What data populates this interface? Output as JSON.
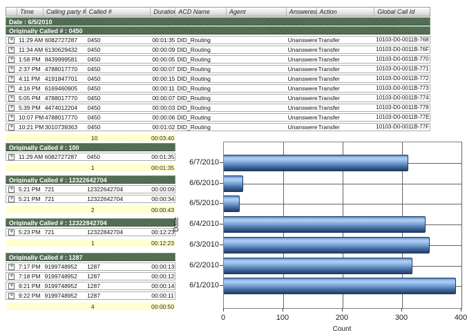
{
  "report": {
    "columns": [
      "Time",
      "Calling party #",
      "Called #",
      "Duration",
      "ACD Name",
      "Agent",
      "Answered",
      "Action",
      "Global Call Id"
    ],
    "date_banner": "Date : 6/5/2010",
    "icons": {
      "expand": "+"
    },
    "groups": [
      {
        "banner": "Originally Called # : 0450",
        "rows": [
          [
            "11:29 AM",
            "6082727287",
            "0450",
            "00:01:35",
            "DID_Routing",
            "",
            "Unanswered",
            "Transfer",
            "10103-D0-0011B-768"
          ],
          [
            "11:34 AM",
            "6130629432",
            "0450",
            "00:00:09",
            "DID_Routing",
            "",
            "Unanswered",
            "Transfer",
            "10103-D0-0011B-76F"
          ],
          [
            "1:58 PM",
            "8439999581",
            "0450",
            "00:00:05",
            "DID_Routing",
            "",
            "Unanswered",
            "Transfer",
            "10103-D0-0011B-770"
          ],
          [
            "2:37 PM",
            "4788017770",
            "0450",
            "00:00:07",
            "DID_Routing",
            "",
            "Unanswered",
            "Transfer",
            "10103-D0-0011B-771"
          ],
          [
            "4:11 PM",
            "4191847701",
            "0450",
            "00:00:15",
            "DID_Routing",
            "",
            "Unanswered",
            "Transfer",
            "10103-D0-0011B-772"
          ],
          [
            "4:16 PM",
            "6169460905",
            "0450",
            "00:00:11",
            "DID_Routing",
            "",
            "Unanswered",
            "Transfer",
            "10103-D0-0011B-773"
          ],
          [
            "5:05 PM",
            "4788017770",
            "0450",
            "00:00:07",
            "DID_Routing",
            "",
            "Unanswered",
            "Transfer",
            "10103-D0-0011B-774"
          ],
          [
            "5:39 PM",
            "4474012204",
            "0450",
            "00:00:03",
            "DID_Routing",
            "",
            "Unanswered",
            "Transfer",
            "10103-D0-0011B-778"
          ],
          [
            "10:07 PM",
            "4788017770",
            "0450",
            "00:00:06",
            "DID_Routing",
            "",
            "Unanswered",
            "Transfer",
            "10103-D0-0011B-77E"
          ],
          [
            "10:21 PM",
            "3010739363",
            "0450",
            "00:01:02",
            "DID_Routing",
            "",
            "Unanswered",
            "Transfer",
            "10103-D0-0011B-77F"
          ]
        ],
        "summary_count": "10",
        "summary_duration": "00:03:40"
      },
      {
        "banner": "Originally Called # : 100",
        "rows": [
          [
            "11:29 AM",
            "6082727287",
            "0450",
            "00:01:35"
          ]
        ],
        "summary_count": "1",
        "summary_duration": "00:01:35"
      },
      {
        "banner": "Originally Called # : 12322642704",
        "rows": [
          [
            "5:21 PM",
            "721",
            "12322642704",
            "00:00:09"
          ],
          [
            "5:21 PM",
            "721",
            "12322642704",
            "00:00:34"
          ]
        ],
        "summary_count": "2",
        "summary_duration": "00:00:43"
      },
      {
        "banner": "Originally Called # : 12322842704",
        "rows": [
          [
            "5:23 PM",
            "721",
            "12322842704",
            "00:12:23"
          ]
        ],
        "summary_count": "1",
        "summary_duration": "00:12:23"
      },
      {
        "banner": "Originally Called # : 1287",
        "rows": [
          [
            "7:17 PM",
            "9199748952",
            "1287",
            "00:00:13"
          ],
          [
            "7:18 PM",
            "9199748952",
            "1287",
            "00:00:12"
          ],
          [
            "9:21 PM",
            "9199748952",
            "1287",
            "00:00:14"
          ],
          [
            "9:22 PM",
            "9199748952",
            "1287",
            "00:00:11"
          ]
        ],
        "summary_count": "4",
        "summary_duration": "00:00:50"
      }
    ]
  },
  "chart_data": {
    "type": "bar",
    "orientation": "horizontal",
    "categories": [
      "6/7/2010",
      "6/6/2010",
      "6/5/2010",
      "6/4/2010",
      "6/3/2010",
      "6/2/2010",
      "6/1/2010"
    ],
    "values": [
      310,
      33,
      27,
      340,
      347,
      317,
      391
    ],
    "xlabel": "Count",
    "ylabel": "Date",
    "xlim": [
      0,
      400
    ],
    "xticks": [
      0,
      100,
      200,
      300,
      400
    ],
    "grid": true,
    "legend": false,
    "bar_color_top": "#aecff2",
    "bar_color_bottom": "#253f66",
    "bar_border_color": "#1d3a63"
  }
}
